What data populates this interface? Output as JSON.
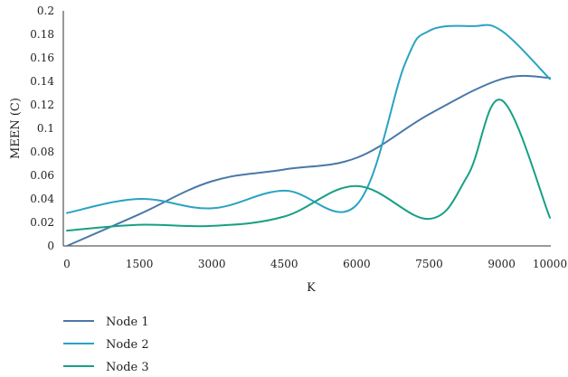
{
  "chart_data": {
    "type": "line",
    "title": "",
    "xlabel": "K",
    "ylabel": "MEEN (C)",
    "xlim": [
      0,
      10000
    ],
    "ylim": [
      0,
      0.2
    ],
    "x_ticks": [
      "0",
      "1500",
      "3000",
      "4500",
      "6000",
      "7500",
      "9000",
      "10000"
    ],
    "y_ticks": [
      "0",
      "0.02",
      "0.04",
      "0.06",
      "0.08",
      "0.1",
      "0.12",
      "0.14",
      "0.16",
      "0.18",
      "0.2"
    ],
    "legend_position": "bottom-left",
    "series": [
      {
        "name": "Node 1",
        "color": "#4a78a8",
        "x": [
          0,
          1500,
          3000,
          4500,
          6000,
          7500,
          9000,
          10000
        ],
        "y": [
          0.0,
          0.027,
          0.055,
          0.065,
          0.075,
          0.112,
          0.142,
          0.143
        ]
      },
      {
        "name": "Node 2",
        "color": "#2aa3c2",
        "x": [
          0,
          1500,
          3000,
          4500,
          6000,
          7000,
          7500,
          8400,
          9000,
          10000
        ],
        "y": [
          0.028,
          0.04,
          0.032,
          0.047,
          0.035,
          0.155,
          0.183,
          0.187,
          0.183,
          0.142
        ]
      },
      {
        "name": "Node 3",
        "color": "#17a085",
        "x": [
          0,
          1500,
          3000,
          4500,
          6000,
          7500,
          8300,
          9000,
          10000
        ],
        "y": [
          0.013,
          0.018,
          0.017,
          0.025,
          0.051,
          0.023,
          0.06,
          0.124,
          0.024
        ]
      }
    ]
  }
}
